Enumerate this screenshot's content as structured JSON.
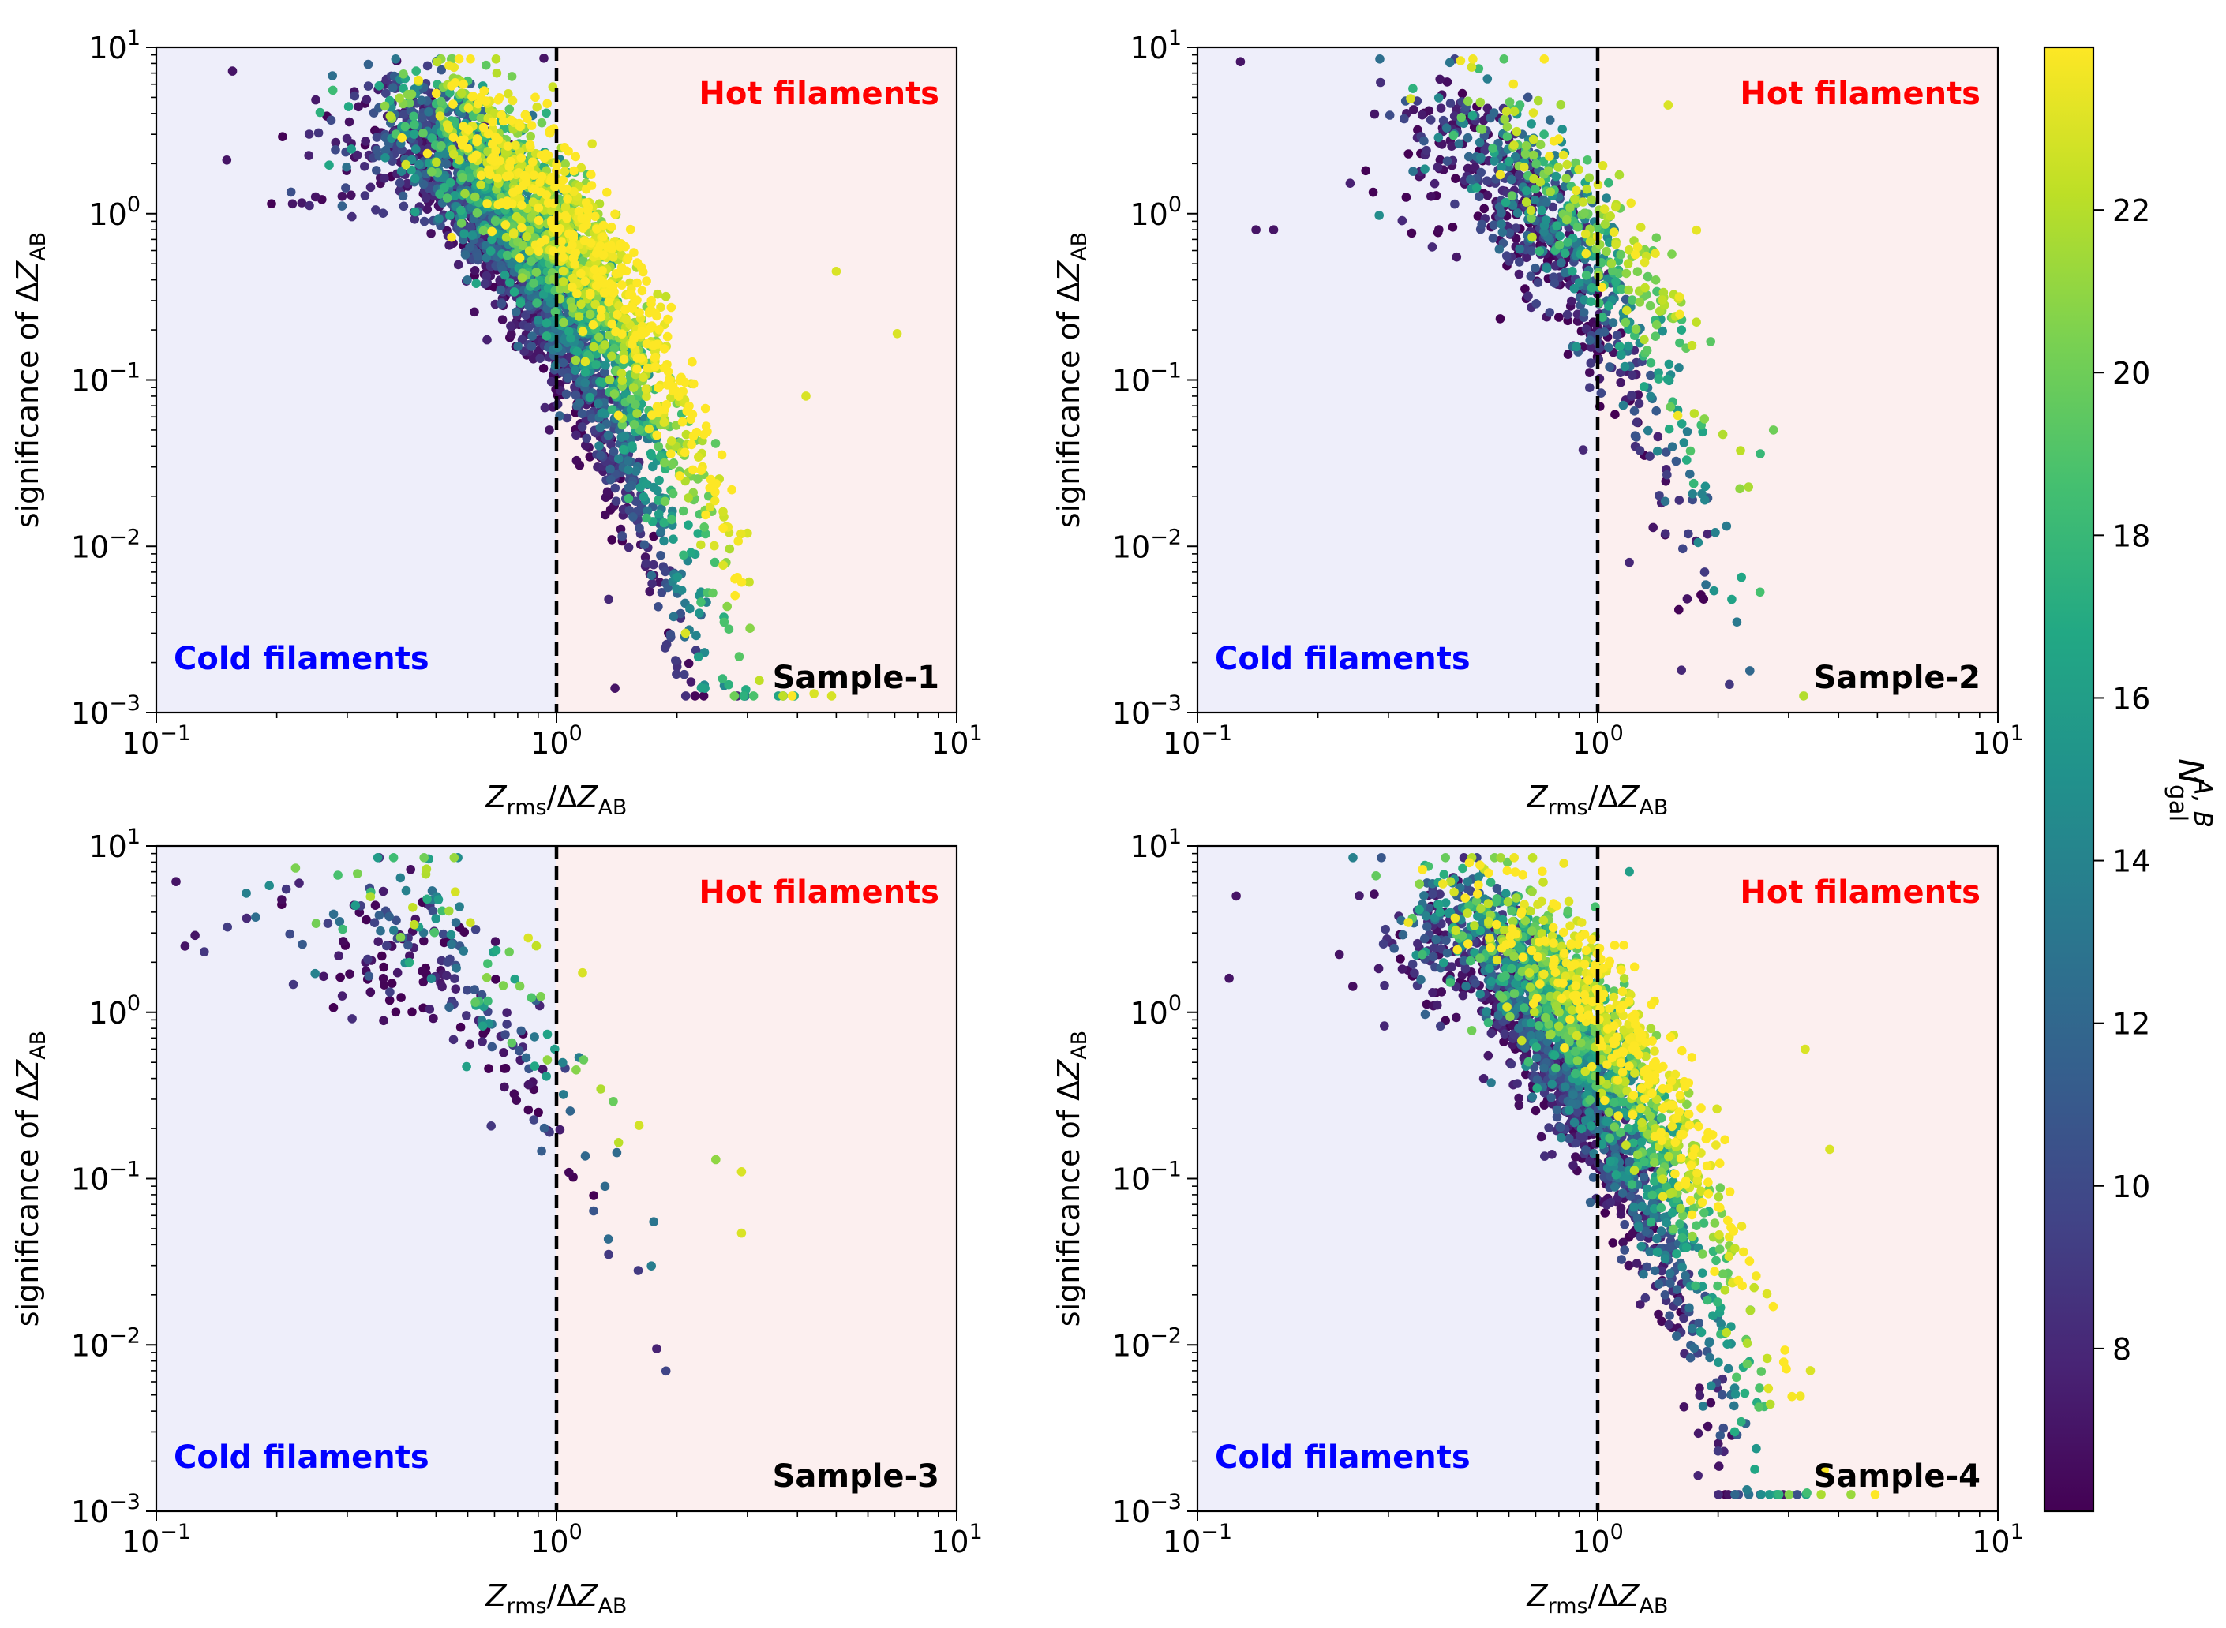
{
  "figure": {
    "colorbar": {
      "label_main": "N",
      "label_sub": "gal",
      "label_sup": "A, B",
      "vmin": 6,
      "vmax": 24,
      "ticks": [
        8,
        10,
        12,
        14,
        16,
        18,
        20,
        22
      ],
      "colormap": "viridis"
    },
    "colors": {
      "cold_region": "#eeeefa",
      "hot_region": "#fcefef",
      "cold_text": "#0000ff",
      "hot_text": "#ff0000",
      "divider": "#000000"
    }
  },
  "chart_data": [
    {
      "type": "scatter",
      "panel": "top-left",
      "sample_label": "Sample-1",
      "cold_label": "Cold filaments",
      "hot_label": "Hot filaments",
      "xlabel": {
        "var": "Z",
        "sub_num": "rms",
        "sep": "/ΔZ",
        "sub_den": "AB"
      },
      "ylabel": {
        "prefix": "significance of ΔZ",
        "sub": "AB"
      },
      "xscale": "log",
      "yscale": "log",
      "xlim": [
        0.1,
        10
      ],
      "ylim": [
        0.001,
        10
      ],
      "xticks": [
        {
          "base": "10",
          "exp": "−1"
        },
        {
          "base": "10",
          "exp": "0"
        },
        {
          "base": "10",
          "exp": "1"
        }
      ],
      "yticks": [
        {
          "base": "10",
          "exp": "−3"
        },
        {
          "base": "10",
          "exp": "−2"
        },
        {
          "base": "10",
          "exp": "−1"
        },
        {
          "base": "10",
          "exp": "0"
        },
        {
          "base": "10",
          "exp": "1"
        }
      ],
      "divider_x": 1,
      "colorvar": "N_gal^{A,B}",
      "density": "very high",
      "n_points": 3600,
      "seed": 11,
      "outliers": [
        {
          "x": 0.155,
          "y": 7.2,
          "c": 7
        },
        {
          "x": 0.15,
          "y": 2.1,
          "c": 7
        },
        {
          "x": 0.93,
          "y": 8.6,
          "c": 7
        },
        {
          "x": 0.96,
          "y": 0.05,
          "c": 7
        },
        {
          "x": 1.4,
          "y": 0.0014,
          "c": 7
        },
        {
          "x": 1.35,
          "y": 0.0048,
          "c": 8
        },
        {
          "x": 2.35,
          "y": 0.0014,
          "c": 16
        },
        {
          "x": 2.6,
          "y": 0.0016,
          "c": 18
        },
        {
          "x": 2.1,
          "y": 0.003,
          "c": 23
        },
        {
          "x": 4.4,
          "y": 0.0013,
          "c": 23
        },
        {
          "x": 7.1,
          "y": 0.19,
          "c": 23
        },
        {
          "x": 5.0,
          "y": 0.45,
          "c": 23
        },
        {
          "x": 4.2,
          "y": 0.08,
          "c": 23
        },
        {
          "x": 3.0,
          "y": 0.012,
          "c": 23
        }
      ]
    },
    {
      "type": "scatter",
      "panel": "top-right",
      "sample_label": "Sample-2",
      "cold_label": "Cold filaments",
      "hot_label": "Hot filaments",
      "xlabel": {
        "var": "Z",
        "sub_num": "rms",
        "sep": "/ΔZ",
        "sub_den": "AB"
      },
      "ylabel": {
        "prefix": "significance of ΔZ",
        "sub": "AB"
      },
      "xscale": "log",
      "yscale": "log",
      "xlim": [
        0.1,
        10
      ],
      "ylim": [
        0.001,
        10
      ],
      "xticks": [
        {
          "base": "10",
          "exp": "−1"
        },
        {
          "base": "10",
          "exp": "0"
        },
        {
          "base": "10",
          "exp": "1"
        }
      ],
      "yticks": [
        {
          "base": "10",
          "exp": "−3"
        },
        {
          "base": "10",
          "exp": "−2"
        },
        {
          "base": "10",
          "exp": "−1"
        },
        {
          "base": "10",
          "exp": "0"
        },
        {
          "base": "10",
          "exp": "1"
        }
      ],
      "divider_x": 1,
      "colorvar": "N_gal^{A,B}",
      "density": "medium",
      "n_points": 900,
      "seed": 23,
      "outliers": [
        {
          "x": 0.128,
          "y": 8.2,
          "c": 7
        },
        {
          "x": 0.14,
          "y": 0.8,
          "c": 7
        },
        {
          "x": 0.155,
          "y": 0.8,
          "c": 7
        },
        {
          "x": 0.92,
          "y": 0.038,
          "c": 8
        },
        {
          "x": 1.62,
          "y": 0.0018,
          "c": 8
        },
        {
          "x": 1.2,
          "y": 0.008,
          "c": 8
        },
        {
          "x": 2.75,
          "y": 0.05,
          "c": 20
        },
        {
          "x": 2.55,
          "y": 0.036,
          "c": 18
        },
        {
          "x": 1.85,
          "y": 0.007,
          "c": 9
        },
        {
          "x": 1.5,
          "y": 4.5,
          "c": 23
        }
      ]
    },
    {
      "type": "scatter",
      "panel": "bottom-left",
      "sample_label": "Sample-3",
      "cold_label": "Cold filaments",
      "hot_label": "Hot filaments",
      "xlabel": {
        "var": "Z",
        "sub_num": "rms",
        "sep": "/ΔZ",
        "sub_den": "AB"
      },
      "ylabel": {
        "prefix": "significance of ΔZ",
        "sub": "AB"
      },
      "xscale": "log",
      "yscale": "log",
      "xlim": [
        0.1,
        10
      ],
      "ylim": [
        0.001,
        10
      ],
      "xticks": [
        {
          "base": "10",
          "exp": "−1"
        },
        {
          "base": "10",
          "exp": "0"
        },
        {
          "base": "10",
          "exp": "1"
        }
      ],
      "yticks": [
        {
          "base": "10",
          "exp": "−3"
        },
        {
          "base": "10",
          "exp": "−2"
        },
        {
          "base": "10",
          "exp": "−1"
        },
        {
          "base": "10",
          "exp": "0"
        },
        {
          "base": "10",
          "exp": "1"
        }
      ],
      "divider_x": 1,
      "colorvar": "N_gal^{A,B}",
      "density": "low",
      "n_points": 260,
      "seed": 37,
      "outliers": [
        {
          "x": 0.112,
          "y": 6.1,
          "c": 7
        },
        {
          "x": 0.118,
          "y": 2.5,
          "c": 7
        },
        {
          "x": 0.125,
          "y": 2.9,
          "c": 7
        },
        {
          "x": 2.5,
          "y": 0.13,
          "c": 21
        },
        {
          "x": 2.9,
          "y": 0.11,
          "c": 23
        },
        {
          "x": 2.9,
          "y": 0.047,
          "c": 23
        },
        {
          "x": 1.6,
          "y": 0.028,
          "c": 9
        },
        {
          "x": 1.35,
          "y": 0.035,
          "c": 9
        },
        {
          "x": 1.75,
          "y": 0.055,
          "c": 13
        },
        {
          "x": 0.85,
          "y": 2.8,
          "c": 23
        }
      ]
    },
    {
      "type": "scatter",
      "panel": "bottom-right",
      "sample_label": "Sample-4",
      "cold_label": "Cold filaments",
      "hot_label": "Hot filaments",
      "xlabel": {
        "var": "Z",
        "sub_num": "rms",
        "sep": "/ΔZ",
        "sub_den": "AB"
      },
      "ylabel": {
        "prefix": "significance of ΔZ",
        "sub": "AB"
      },
      "xscale": "log",
      "yscale": "log",
      "xlim": [
        0.1,
        10
      ],
      "ylim": [
        0.001,
        10
      ],
      "xticks": [
        {
          "base": "10",
          "exp": "−1"
        },
        {
          "base": "10",
          "exp": "0"
        },
        {
          "base": "10",
          "exp": "1"
        }
      ],
      "yticks": [
        {
          "base": "10",
          "exp": "−3"
        },
        {
          "base": "10",
          "exp": "−2"
        },
        {
          "base": "10",
          "exp": "−1"
        },
        {
          "base": "10",
          "exp": "0"
        },
        {
          "base": "10",
          "exp": "1"
        }
      ],
      "divider_x": 1,
      "colorvar": "N_gal^{A,B}",
      "density": "high",
      "n_points": 2600,
      "seed": 53,
      "outliers": [
        {
          "x": 0.125,
          "y": 5.0,
          "c": 7
        },
        {
          "x": 0.12,
          "y": 1.6,
          "c": 7
        },
        {
          "x": 1.2,
          "y": 7.0,
          "c": 16
        },
        {
          "x": 2.0,
          "y": 0.0023,
          "c": 9
        },
        {
          "x": 2.2,
          "y": 0.003,
          "c": 17
        },
        {
          "x": 2.5,
          "y": 0.0045,
          "c": 17
        },
        {
          "x": 2.7,
          "y": 0.0044,
          "c": 22
        },
        {
          "x": 3.4,
          "y": 0.007,
          "c": 23
        },
        {
          "x": 3.8,
          "y": 0.15,
          "c": 23
        },
        {
          "x": 3.3,
          "y": 0.6,
          "c": 23
        },
        {
          "x": 2.2,
          "y": 0.0055,
          "c": 14
        }
      ]
    }
  ]
}
